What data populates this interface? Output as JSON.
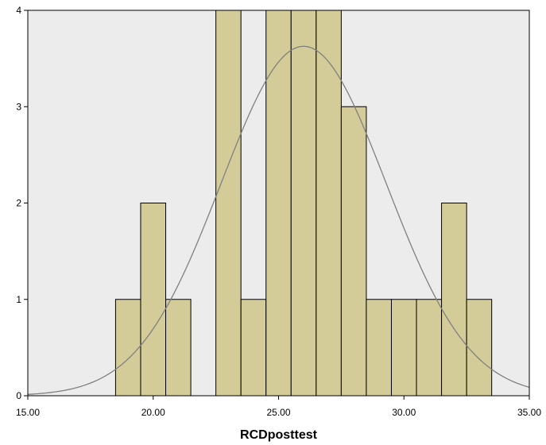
{
  "chart_data": {
    "type": "bar",
    "title": "",
    "xlabel": "RCDposttest",
    "ylabel": "",
    "xlim": [
      15,
      35
    ],
    "ylim": [
      0,
      4
    ],
    "x_ticks": [
      "15.00",
      "20.00",
      "25.00",
      "30.00",
      "35.00"
    ],
    "y_ticks": [
      "0",
      "1",
      "2",
      "3",
      "4"
    ],
    "bin_width": 1,
    "bins": [
      {
        "center": 19,
        "count": 1
      },
      {
        "center": 20,
        "count": 2
      },
      {
        "center": 21,
        "count": 1
      },
      {
        "center": 23,
        "count": 4
      },
      {
        "center": 24,
        "count": 1
      },
      {
        "center": 25,
        "count": 4
      },
      {
        "center": 26,
        "count": 4
      },
      {
        "center": 27,
        "count": 4
      },
      {
        "center": 28,
        "count": 3
      },
      {
        "center": 29,
        "count": 1
      },
      {
        "center": 30,
        "count": 1
      },
      {
        "center": 31,
        "count": 1
      },
      {
        "center": 32,
        "count": 2
      },
      {
        "center": 33,
        "count": 1
      }
    ],
    "normal_curve": {
      "mean": 26.0,
      "std_dev": 3.3
    },
    "grid": false,
    "colors": {
      "bar_fill": "#d4cc98",
      "bar_stroke": "#000000",
      "plot_background": "#ececec",
      "curve": "#808080"
    }
  }
}
